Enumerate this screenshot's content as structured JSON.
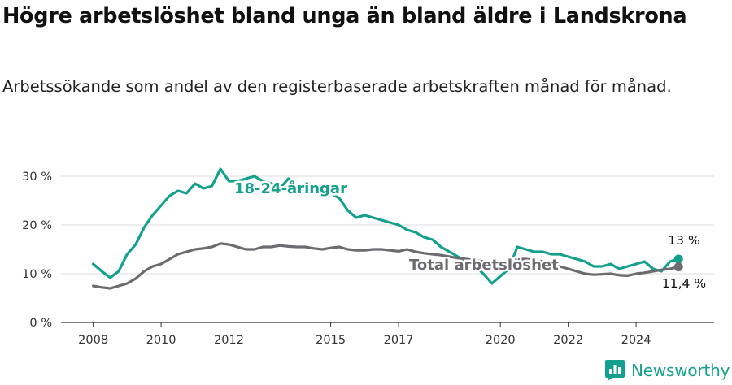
{
  "title": "Högre arbetslöshet bland unga än bland äldre i Landskrona",
  "subtitle": "Arbetssökande som andel av den registerbaserade arbetskraften månad för månad.",
  "brand": "Newsworthy",
  "brand_color": "#13a08c",
  "chart_data": {
    "type": "line",
    "ylim": [
      0,
      32
    ],
    "yticks": [
      0,
      10,
      20,
      30
    ],
    "ytick_labels": [
      "0 %",
      "10 %",
      "20 %",
      "30 %"
    ],
    "xticks": [
      2008,
      2010,
      2012,
      2015,
      2017,
      2020,
      2022,
      2024
    ],
    "xtick_labels": [
      "2008",
      "2010",
      "2012",
      "2015",
      "2017",
      "2020",
      "2022",
      "2024"
    ],
    "grid": true,
    "series": [
      {
        "name": "18-24-åringar",
        "color": "#13a08c",
        "end_label": "13 %",
        "points": [
          [
            2008.0,
            12.0
          ],
          [
            2008.25,
            10.5
          ],
          [
            2008.5,
            9.2
          ],
          [
            2008.75,
            10.5
          ],
          [
            2009.0,
            14.0
          ],
          [
            2009.25,
            16.0
          ],
          [
            2009.5,
            19.5
          ],
          [
            2009.75,
            22.0
          ],
          [
            2010.0,
            24.0
          ],
          [
            2010.25,
            26.0
          ],
          [
            2010.5,
            27.0
          ],
          [
            2010.75,
            26.5
          ],
          [
            2011.0,
            28.5
          ],
          [
            2011.25,
            27.5
          ],
          [
            2011.5,
            28.0
          ],
          [
            2011.75,
            31.5
          ],
          [
            2012.0,
            29.0
          ],
          [
            2012.25,
            29.0
          ],
          [
            2012.5,
            29.5
          ],
          [
            2012.75,
            30.0
          ],
          [
            2013.0,
            29.0
          ],
          [
            2013.25,
            28.5
          ],
          [
            2013.5,
            27.5
          ],
          [
            2013.75,
            29.5
          ],
          [
            2014.0,
            28.0
          ],
          [
            2014.25,
            27.0
          ],
          [
            2014.5,
            27.5
          ],
          [
            2014.75,
            28.0
          ],
          [
            2015.0,
            26.5
          ],
          [
            2015.25,
            25.5
          ],
          [
            2015.5,
            23.0
          ],
          [
            2015.75,
            21.5
          ],
          [
            2016.0,
            22.0
          ],
          [
            2016.25,
            21.5
          ],
          [
            2016.5,
            21.0
          ],
          [
            2016.75,
            20.5
          ],
          [
            2017.0,
            20.0
          ],
          [
            2017.25,
            19.0
          ],
          [
            2017.5,
            18.5
          ],
          [
            2017.75,
            17.5
          ],
          [
            2018.0,
            17.0
          ],
          [
            2018.25,
            15.5
          ],
          [
            2018.5,
            14.5
          ],
          [
            2018.75,
            13.5
          ],
          [
            2019.0,
            12.5
          ],
          [
            2019.25,
            11.5
          ],
          [
            2019.5,
            10.0
          ],
          [
            2019.75,
            8.0
          ],
          [
            2020.0,
            9.5
          ],
          [
            2020.25,
            11.0
          ],
          [
            2020.5,
            15.5
          ],
          [
            2020.75,
            15.0
          ],
          [
            2021.0,
            14.5
          ],
          [
            2021.25,
            14.5
          ],
          [
            2021.5,
            14.0
          ],
          [
            2021.75,
            14.0
          ],
          [
            2022.0,
            13.5
          ],
          [
            2022.25,
            13.0
          ],
          [
            2022.5,
            12.5
          ],
          [
            2022.75,
            11.5
          ],
          [
            2023.0,
            11.5
          ],
          [
            2023.25,
            12.0
          ],
          [
            2023.5,
            11.0
          ],
          [
            2023.75,
            11.5
          ],
          [
            2024.0,
            12.0
          ],
          [
            2024.25,
            12.5
          ],
          [
            2024.5,
            11.0
          ],
          [
            2024.75,
            10.5
          ],
          [
            2025.0,
            12.5
          ],
          [
            2025.25,
            13.0
          ]
        ]
      },
      {
        "name": "Total arbetslöshet",
        "color": "#6d6b70",
        "end_label": "11,4 %",
        "points": [
          [
            2008.0,
            7.5
          ],
          [
            2008.25,
            7.2
          ],
          [
            2008.5,
            7.0
          ],
          [
            2008.75,
            7.5
          ],
          [
            2009.0,
            8.0
          ],
          [
            2009.25,
            9.0
          ],
          [
            2009.5,
            10.5
          ],
          [
            2009.75,
            11.5
          ],
          [
            2010.0,
            12.0
          ],
          [
            2010.25,
            13.0
          ],
          [
            2010.5,
            14.0
          ],
          [
            2010.75,
            14.5
          ],
          [
            2011.0,
            15.0
          ],
          [
            2011.25,
            15.2
          ],
          [
            2011.5,
            15.5
          ],
          [
            2011.75,
            16.2
          ],
          [
            2012.0,
            16.0
          ],
          [
            2012.25,
            15.5
          ],
          [
            2012.5,
            15.0
          ],
          [
            2012.75,
            15.0
          ],
          [
            2013.0,
            15.5
          ],
          [
            2013.25,
            15.5
          ],
          [
            2013.5,
            15.8
          ],
          [
            2013.75,
            15.6
          ],
          [
            2014.0,
            15.5
          ],
          [
            2014.25,
            15.5
          ],
          [
            2014.5,
            15.2
          ],
          [
            2014.75,
            15.0
          ],
          [
            2015.0,
            15.3
          ],
          [
            2015.25,
            15.5
          ],
          [
            2015.5,
            15.0
          ],
          [
            2015.75,
            14.8
          ],
          [
            2016.0,
            14.8
          ],
          [
            2016.25,
            15.0
          ],
          [
            2016.5,
            15.0
          ],
          [
            2016.75,
            14.8
          ],
          [
            2017.0,
            14.6
          ],
          [
            2017.25,
            15.0
          ],
          [
            2017.5,
            14.5
          ],
          [
            2017.75,
            14.2
          ],
          [
            2018.0,
            14.0
          ],
          [
            2018.25,
            13.8
          ],
          [
            2018.5,
            13.5
          ],
          [
            2018.75,
            13.2
          ],
          [
            2019.0,
            13.0
          ],
          [
            2019.25,
            12.8
          ],
          [
            2019.5,
            12.5
          ],
          [
            2019.75,
            12.3
          ],
          [
            2020.0,
            12.2
          ],
          [
            2020.25,
            12.5
          ],
          [
            2020.5,
            13.0
          ],
          [
            2020.75,
            13.0
          ],
          [
            2021.0,
            12.8
          ],
          [
            2021.25,
            12.5
          ],
          [
            2021.5,
            12.0
          ],
          [
            2021.75,
            11.5
          ],
          [
            2022.0,
            11.0
          ],
          [
            2022.25,
            10.5
          ],
          [
            2022.5,
            10.0
          ],
          [
            2022.75,
            9.8
          ],
          [
            2023.0,
            9.9
          ],
          [
            2023.25,
            10.0
          ],
          [
            2023.5,
            9.7
          ],
          [
            2023.75,
            9.6
          ],
          [
            2024.0,
            10.0
          ],
          [
            2024.25,
            10.2
          ],
          [
            2024.5,
            10.5
          ],
          [
            2024.75,
            10.8
          ],
          [
            2025.0,
            11.0
          ],
          [
            2025.25,
            11.4
          ]
        ]
      }
    ]
  }
}
